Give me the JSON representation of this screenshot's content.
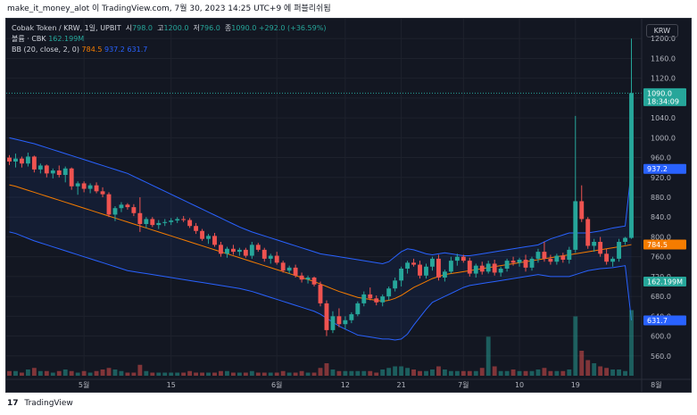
{
  "header": {
    "attribution": "make_it_money_alot 이 TradingView.com, 7월 30, 2023 14:25 UTC+9 에 퍼블리쉬됨"
  },
  "legend": {
    "symbol": "Cobak Token / KRW, 1일, UPBIT",
    "open_label": "시",
    "open": "798.0",
    "high_label": "고",
    "high": "1200.0",
    "low_label": "저",
    "low": "796.0",
    "close_label": "종",
    "close": "1090.0",
    "change": "+292.0 (+36.59%)",
    "volume_label": "볼륨 · CBK",
    "volume_value": "162.199M",
    "bb_label": "BB (20, close, 2, 0)",
    "bb_basis": "784.5",
    "bb_upper": "937.2",
    "bb_lower": "631.7"
  },
  "currency_button": "KRW",
  "footer": {
    "brand": "TradingView",
    "logo_text": "17"
  },
  "colors": {
    "up": "#26a69a",
    "down": "#ef5350",
    "bb_basis": "#f57c00",
    "bb_band": "#2962ff",
    "volume_up": "#26a69a",
    "volume_down": "#ef5350"
  },
  "chart_data": {
    "type": "candlestick",
    "y_range": [
      520,
      1240
    ],
    "y_ticks": [
      560,
      600,
      640,
      680,
      720,
      760,
      800,
      840,
      880,
      920,
      960,
      1000,
      1040,
      1080,
      1120,
      1160,
      1200
    ],
    "y_tick_labels": [
      "560.0",
      "600.0",
      "640.0",
      "680.0",
      "720.0",
      "760.0",
      "800.0",
      "840.0",
      "880.0",
      "920.0",
      "960.0",
      "1000.0",
      "1040.0",
      "1080.0",
      "1120.0",
      "1160.0",
      "1200.0"
    ],
    "x_ticks": [
      {
        "label": "5월",
        "index": 12
      },
      {
        "label": "15",
        "index": 26
      },
      {
        "label": "6월",
        "index": 43
      },
      {
        "label": "12",
        "index": 54
      },
      {
        "label": "21",
        "index": 63
      },
      {
        "label": "7월",
        "index": 73
      },
      {
        "label": "10",
        "index": 82
      },
      {
        "label": "19",
        "index": 91
      },
      {
        "label": "8월",
        "index": 104
      }
    ],
    "axis_badges": [
      {
        "value": 1090.0,
        "label": "1090.0",
        "sublabel": "18:34:09",
        "color": "#26a69a"
      },
      {
        "value": 937.2,
        "label": "937.2",
        "color": "#2962ff"
      },
      {
        "value": 784.5,
        "label": "784.5",
        "color": "#f57c00"
      },
      {
        "value": 710,
        "label": "162.199M",
        "color": "#26a69a"
      },
      {
        "value": 631.7,
        "label": "631.7",
        "color": "#2962ff"
      }
    ],
    "candles": [
      [
        960,
        965,
        945,
        952
      ],
      [
        952,
        968,
        940,
        958
      ],
      [
        958,
        962,
        940,
        948
      ],
      [
        948,
        970,
        942,
        962
      ],
      [
        962,
        964,
        930,
        936
      ],
      [
        936,
        948,
        928,
        944
      ],
      [
        944,
        946,
        920,
        928
      ],
      [
        928,
        938,
        918,
        934
      ],
      [
        934,
        944,
        920,
        925
      ],
      [
        925,
        942,
        910,
        938
      ],
      [
        938,
        940,
        895,
        902
      ],
      [
        902,
        912,
        885,
        908
      ],
      [
        908,
        912,
        890,
        897
      ],
      [
        897,
        908,
        888,
        904
      ],
      [
        904,
        910,
        888,
        892
      ],
      [
        892,
        900,
        880,
        886
      ],
      [
        886,
        890,
        840,
        845
      ],
      [
        845,
        862,
        832,
        858
      ],
      [
        858,
        870,
        850,
        865
      ],
      [
        865,
        868,
        855,
        860
      ],
      [
        860,
        866,
        842,
        848
      ],
      [
        848,
        880,
        810,
        826
      ],
      [
        826,
        840,
        818,
        836
      ],
      [
        836,
        840,
        820,
        824
      ],
      [
        824,
        834,
        816,
        828
      ],
      [
        828,
        836,
        822,
        830
      ],
      [
        830,
        838,
        824,
        833
      ],
      [
        833,
        840,
        828,
        836
      ],
      [
        836,
        842,
        830,
        834
      ],
      [
        834,
        838,
        818,
        822
      ],
      [
        822,
        828,
        806,
        812
      ],
      [
        812,
        816,
        792,
        796
      ],
      [
        796,
        806,
        786,
        802
      ],
      [
        802,
        808,
        780,
        784
      ],
      [
        784,
        790,
        760,
        766
      ],
      [
        766,
        780,
        758,
        776
      ],
      [
        776,
        784,
        764,
        770
      ],
      [
        770,
        778,
        762,
        774
      ],
      [
        774,
        778,
        758,
        762
      ],
      [
        762,
        790,
        756,
        784
      ],
      [
        784,
        788,
        770,
        774
      ],
      [
        774,
        778,
        750,
        756
      ],
      [
        756,
        766,
        746,
        762
      ],
      [
        762,
        770,
        744,
        748
      ],
      [
        748,
        752,
        728,
        732
      ],
      [
        732,
        742,
        726,
        738
      ],
      [
        738,
        744,
        718,
        722
      ],
      [
        722,
        728,
        708,
        714
      ],
      [
        714,
        722,
        706,
        718
      ],
      [
        718,
        720,
        700,
        704
      ],
      [
        704,
        710,
        660,
        666
      ],
      [
        666,
        672,
        600,
        612
      ],
      [
        612,
        650,
        606,
        640
      ],
      [
        640,
        656,
        618,
        624
      ],
      [
        624,
        640,
        614,
        632
      ],
      [
        632,
        648,
        626,
        644
      ],
      [
        644,
        670,
        640,
        666
      ],
      [
        666,
        690,
        660,
        684
      ],
      [
        684,
        698,
        672,
        676
      ],
      [
        676,
        682,
        662,
        668
      ],
      [
        668,
        684,
        660,
        680
      ],
      [
        680,
        700,
        672,
        696
      ],
      [
        696,
        718,
        690,
        712
      ],
      [
        712,
        740,
        700,
        736
      ],
      [
        736,
        752,
        726,
        748
      ],
      [
        748,
        756,
        740,
        744
      ],
      [
        744,
        752,
        716,
        722
      ],
      [
        722,
        746,
        716,
        740
      ],
      [
        740,
        760,
        732,
        756
      ],
      [
        756,
        764,
        712,
        718
      ],
      [
        718,
        734,
        710,
        730
      ],
      [
        730,
        760,
        726,
        752
      ],
      [
        752,
        766,
        742,
        760
      ],
      [
        760,
        764,
        748,
        752
      ],
      [
        752,
        758,
        720,
        726
      ],
      [
        726,
        746,
        718,
        742
      ],
      [
        742,
        750,
        724,
        730
      ],
      [
        730,
        752,
        726,
        746
      ],
      [
        746,
        754,
        722,
        728
      ],
      [
        728,
        740,
        720,
        736
      ],
      [
        736,
        756,
        730,
        752
      ],
      [
        752,
        760,
        742,
        748
      ],
      [
        748,
        758,
        740,
        754
      ],
      [
        754,
        764,
        730,
        738
      ],
      [
        738,
        760,
        732,
        756
      ],
      [
        756,
        776,
        748,
        770
      ],
      [
        770,
        790,
        750,
        756
      ],
      [
        756,
        764,
        744,
        750
      ],
      [
        750,
        766,
        744,
        762
      ],
      [
        762,
        768,
        748,
        754
      ],
      [
        754,
        780,
        746,
        774
      ],
      [
        774,
        1044,
        768,
        872
      ],
      [
        872,
        904,
        830,
        836
      ],
      [
        836,
        840,
        776,
        782
      ],
      [
        782,
        796,
        770,
        790
      ],
      [
        790,
        800,
        760,
        766
      ],
      [
        766,
        776,
        744,
        750
      ],
      [
        750,
        760,
        740,
        756
      ],
      [
        756,
        796,
        750,
        790
      ],
      [
        790,
        800,
        784,
        798
      ],
      [
        798,
        1200,
        796,
        1090
      ]
    ],
    "bb_upper": [
      1000,
      997,
      994,
      991,
      988,
      984,
      980,
      976,
      972,
      968,
      964,
      960,
      956,
      952,
      948,
      944,
      940,
      936,
      932,
      928,
      922,
      916,
      910,
      904,
      898,
      892,
      886,
      880,
      874,
      868,
      862,
      856,
      850,
      844,
      838,
      832,
      826,
      820,
      815,
      810,
      806,
      802,
      798,
      794,
      790,
      786,
      782,
      778,
      774,
      770,
      766,
      764,
      762,
      760,
      758,
      756,
      754,
      752,
      750,
      748,
      746,
      750,
      760,
      770,
      776,
      774,
      770,
      766,
      764,
      766,
      768,
      766,
      764,
      762,
      762,
      764,
      766,
      768,
      770,
      772,
      774,
      776,
      778,
      780,
      782,
      784,
      790,
      796,
      800,
      804,
      808,
      808,
      808,
      808,
      810,
      812,
      815,
      818,
      820,
      822,
      937
    ],
    "bb_basis": [
      905,
      902,
      898,
      894,
      890,
      886,
      882,
      878,
      874,
      870,
      866,
      862,
      858,
      854,
      850,
      846,
      842,
      838,
      834,
      830,
      826,
      822,
      818,
      814,
      810,
      806,
      802,
      798,
      794,
      790,
      786,
      782,
      778,
      774,
      770,
      766,
      762,
      758,
      754,
      750,
      746,
      742,
      738,
      734,
      730,
      726,
      722,
      718,
      714,
      710,
      705,
      700,
      695,
      690,
      686,
      682,
      678,
      676,
      674,
      672,
      670,
      672,
      676,
      682,
      690,
      698,
      704,
      710,
      716,
      720,
      724,
      726,
      728,
      730,
      732,
      734,
      736,
      738,
      740,
      742,
      744,
      746,
      748,
      750,
      752,
      754,
      756,
      758,
      760,
      762,
      764,
      766,
      768,
      770,
      772,
      774,
      776,
      778,
      780,
      782,
      784.5
    ],
    "bb_lower": [
      810,
      807,
      802,
      797,
      792,
      788,
      784,
      780,
      776,
      772,
      768,
      764,
      760,
      756,
      752,
      748,
      744,
      740,
      736,
      732,
      730,
      728,
      726,
      724,
      722,
      720,
      718,
      716,
      714,
      712,
      710,
      708,
      706,
      704,
      702,
      700,
      698,
      696,
      693,
      690,
      686,
      682,
      678,
      674,
      670,
      666,
      662,
      658,
      654,
      650,
      644,
      636,
      628,
      620,
      614,
      608,
      602,
      600,
      598,
      596,
      594,
      594,
      592,
      594,
      604,
      622,
      638,
      654,
      668,
      674,
      680,
      686,
      692,
      698,
      702,
      704,
      706,
      708,
      710,
      712,
      714,
      716,
      718,
      720,
      722,
      724,
      722,
      720,
      720,
      720,
      720,
      724,
      728,
      732,
      734,
      736,
      737,
      738,
      740,
      742,
      631.7
    ],
    "volume": [
      0.3,
      0.3,
      0.2,
      0.4,
      0.5,
      0.3,
      0.3,
      0.2,
      0.3,
      0.4,
      0.3,
      0.2,
      0.3,
      0.2,
      0.3,
      0.4,
      0.5,
      0.4,
      0.3,
      0.2,
      0.2,
      0.7,
      0.3,
      0.2,
      0.2,
      0.2,
      0.2,
      0.2,
      0.2,
      0.3,
      0.2,
      0.2,
      0.2,
      0.2,
      0.3,
      0.3,
      0.2,
      0.2,
      0.2,
      0.3,
      0.2,
      0.2,
      0.2,
      0.2,
      0.3,
      0.2,
      0.2,
      0.3,
      0.2,
      0.2,
      0.5,
      0.8,
      0.4,
      0.3,
      0.3,
      0.3,
      0.3,
      0.3,
      0.3,
      0.2,
      0.4,
      0.5,
      0.6,
      0.6,
      0.5,
      0.4,
      0.3,
      0.3,
      0.4,
      0.6,
      0.4,
      0.3,
      0.3,
      0.3,
      0.3,
      0.3,
      0.5,
      2.5,
      0.6,
      0.3,
      0.3,
      0.4,
      0.3,
      0.3,
      0.3,
      0.4,
      0.5,
      0.3,
      0.3,
      0.3,
      0.4,
      3.8,
      1.6,
      1.0,
      0.8,
      0.6,
      0.5,
      0.4,
      0.4,
      0.3,
      4.2
    ]
  }
}
